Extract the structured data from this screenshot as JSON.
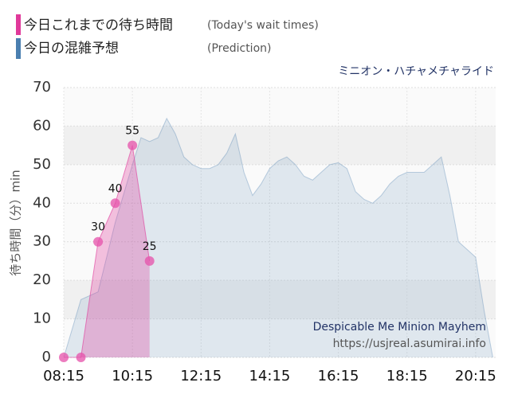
{
  "chart_data": {
    "type": "area",
    "legend": [
      {
        "label": "今日これまでの待ち時間",
        "note": "(Today's wait times)"
      },
      {
        "label": "今日の混雑予想",
        "note": "(Prediction)"
      }
    ],
    "title": "ミニオン・ハチャメチャライド",
    "ylabel": "待ち時間（分）min",
    "watermark": [
      "Despicable Me Minion Mayhem",
      "https://usjreal.asumirai.info"
    ],
    "xlim": [
      495,
      1250
    ],
    "ylim": [
      0,
      70
    ],
    "xticks": [
      {
        "value": 495,
        "label": "08:15"
      },
      {
        "value": 615,
        "label": "10:15"
      },
      {
        "value": 735,
        "label": "12:15"
      },
      {
        "value": 855,
        "label": "14:15"
      },
      {
        "value": 975,
        "label": "16:15"
      },
      {
        "value": 1095,
        "label": "18:15"
      },
      {
        "value": 1215,
        "label": "20:15"
      }
    ],
    "yticks": [
      0,
      10,
      20,
      30,
      40,
      50,
      60,
      70
    ],
    "grid": true,
    "series": [
      {
        "name": "今日の混雑予想",
        "color": "#4a7fb0",
        "x": [
          495,
          525,
          555,
          585,
          615,
          630,
          645,
          660,
          675,
          690,
          705,
          720,
          735,
          750,
          765,
          780,
          795,
          810,
          825,
          840,
          855,
          870,
          885,
          900,
          915,
          930,
          945,
          960,
          975,
          990,
          1005,
          1020,
          1035,
          1050,
          1065,
          1080,
          1095,
          1110,
          1125,
          1140,
          1155,
          1170,
          1185,
          1200,
          1215,
          1230,
          1245
        ],
        "values": [
          0,
          15,
          17,
          35,
          50,
          57,
          56,
          57,
          62,
          58,
          52,
          50,
          49,
          49,
          50,
          53,
          58,
          48,
          42,
          45,
          49,
          51,
          52,
          50,
          47,
          46,
          48,
          50,
          50.5,
          49,
          43,
          41,
          40,
          42,
          45,
          47,
          48,
          48,
          48,
          50,
          52,
          42,
          30,
          28,
          26,
          12,
          0
        ]
      },
      {
        "name": "今日これまでの待ち時間",
        "color": "#e0399a",
        "x": [
          495,
          525,
          555,
          585,
          615,
          645
        ],
        "values": [
          0,
          0,
          30,
          40,
          55,
          25
        ]
      }
    ]
  }
}
